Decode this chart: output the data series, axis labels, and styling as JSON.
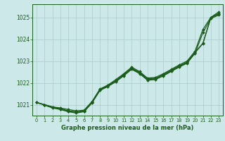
{
  "title": "Graphe pression niveau de la mer (hPa)",
  "background_color": "#cde8e8",
  "plot_bg_color": "#cde8e8",
  "grid_color": "#aacccc",
  "line_color": "#1a5c1a",
  "ylim": [
    1020.5,
    1025.6
  ],
  "xlim": [
    -0.5,
    23.5
  ],
  "yticks": [
    1021,
    1022,
    1023,
    1024,
    1025
  ],
  "xticks": [
    0,
    1,
    2,
    3,
    4,
    5,
    6,
    7,
    8,
    9,
    10,
    11,
    12,
    13,
    14,
    15,
    16,
    17,
    18,
    19,
    20,
    21,
    22,
    23
  ],
  "series": [
    [
      1021.1,
      1021.0,
      1020.9,
      1020.85,
      1020.78,
      1020.72,
      1020.75,
      1021.15,
      1021.72,
      1021.9,
      1022.15,
      1022.42,
      1022.72,
      1022.52,
      1022.22,
      1022.25,
      1022.42,
      1022.62,
      1022.82,
      1023.0,
      1023.45,
      1024.45,
      1025.0,
      1025.25
    ],
    [
      1021.1,
      1021.0,
      1020.9,
      1020.82,
      1020.72,
      1020.68,
      1020.72,
      1021.12,
      1021.7,
      1021.88,
      1022.1,
      1022.38,
      1022.68,
      1022.48,
      1022.18,
      1022.2,
      1022.38,
      1022.58,
      1022.78,
      1022.95,
      1023.4,
      1023.82,
      1025.0,
      1025.18
    ],
    [
      1021.1,
      1021.0,
      1020.88,
      1020.8,
      1020.7,
      1020.65,
      1020.7,
      1021.1,
      1021.68,
      1021.86,
      1022.08,
      1022.35,
      1022.65,
      1022.45,
      1022.15,
      1022.18,
      1022.35,
      1022.55,
      1022.75,
      1022.92,
      1023.38,
      1023.8,
      1024.98,
      1025.15
    ],
    [
      1021.1,
      1020.98,
      1020.85,
      1020.78,
      1020.68,
      1020.62,
      1020.68,
      1021.08,
      1021.65,
      1021.83,
      1022.05,
      1022.32,
      1022.62,
      1022.42,
      1022.12,
      1022.15,
      1022.32,
      1022.52,
      1022.72,
      1022.9,
      1023.35,
      1024.3,
      1024.95,
      1025.1
    ]
  ]
}
